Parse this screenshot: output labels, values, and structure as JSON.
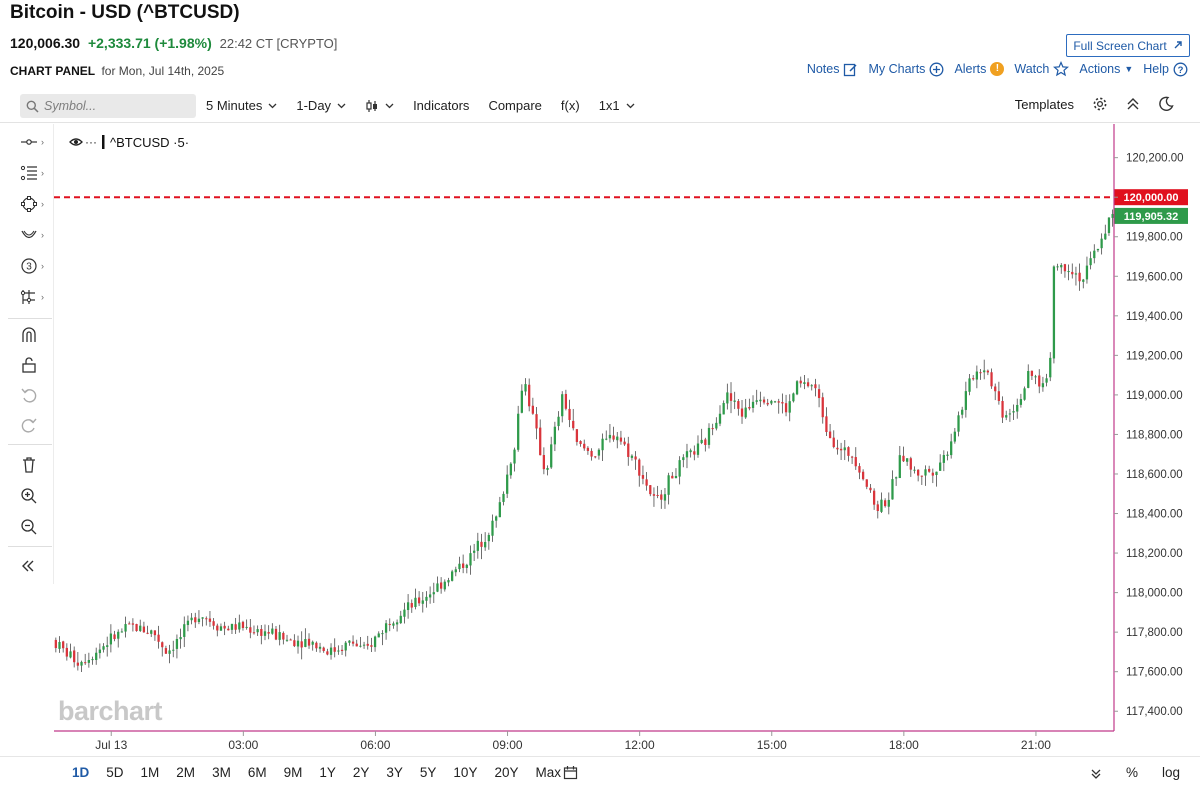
{
  "header": {
    "title": "Bitcoin - USD (^BTCUSD)",
    "last": "120,006.30",
    "change": "+2,333.71 (+1.98%)",
    "time": "22:42 CT [CRYPTO]",
    "panel_label": "CHART PANEL",
    "panel_date": "for Mon, Jul 14th, 2025",
    "fullscreen": "Full Screen Chart",
    "links": {
      "notes": "Notes",
      "my_charts": "My Charts",
      "alerts": "Alerts",
      "watch": "Watch",
      "actions": "Actions",
      "help": "Help"
    },
    "alert_badge": "!"
  },
  "toolbar": {
    "search_placeholder": "Symbol...",
    "interval": "5 Minutes",
    "range": "1-Day",
    "indicators": "Indicators",
    "compare": "Compare",
    "fx": "f(x)",
    "layout": "1x1",
    "templates": "Templates"
  },
  "bottom": {
    "ranges": [
      "1D",
      "5D",
      "1M",
      "2M",
      "3M",
      "6M",
      "9M",
      "1Y",
      "2Y",
      "3Y",
      "5Y",
      "10Y",
      "20Y",
      "Max"
    ],
    "active": "1D",
    "percent": "%",
    "log": "log"
  },
  "watermark": "barchart",
  "colors": {
    "up": "#2e9a4a",
    "down": "#d9343b",
    "alert_line": "#e0101e",
    "accent": "#1f5aa6",
    "axis_line": "#c0398a"
  },
  "icons": [
    "search-icon",
    "notes-icon",
    "plus-circle-icon",
    "alert-icon",
    "star-icon",
    "help-icon",
    "external-link-icon",
    "candle-type-icon",
    "gear-icon",
    "collapse-icon",
    "moon-icon",
    "eye-icon",
    "calendar-icon",
    "magnet-icon",
    "lock-icon",
    "undo-icon",
    "redo-icon",
    "trash-icon",
    "zoom-in-icon",
    "zoom-out-icon",
    "double-chevron-left-icon"
  ],
  "chart_data": {
    "type": "candlestick",
    "symbol_label": "^BTCUSD ·5·",
    "interval": "5 Minutes",
    "ylim": [
      117300,
      120350
    ],
    "y_ticks": [
      117400,
      117600,
      117800,
      118000,
      118200,
      118400,
      118600,
      118800,
      119000,
      119200,
      119400,
      119600,
      119800,
      120000,
      120200
    ],
    "y_tick_labels": [
      "117,400.00",
      "117,600.00",
      "117,800.00",
      "118,000.00",
      "118,200.00",
      "118,400.00",
      "118,600.00",
      "118,800.00",
      "119,000.00",
      "119,200.00",
      "119,400.00",
      "119,600.00",
      "119,800.00",
      "",
      "120,200.00"
    ],
    "x_ticks": [
      "Jul 13",
      "03:00",
      "06:00",
      "09:00",
      "12:00",
      "15:00",
      "18:00",
      "21:00"
    ],
    "x_tick_hours": [
      0,
      3,
      6,
      9,
      12,
      15,
      18,
      21
    ],
    "x_range_hours": [
      -1.3,
      22.75
    ],
    "alert_line": {
      "value": 120000,
      "label": "120,000.00"
    },
    "last_price": {
      "value": 119905.32,
      "label": "119,905.32"
    },
    "waypoints": [
      [
        -1.3,
        117760
      ],
      [
        -1.0,
        117700
      ],
      [
        -0.7,
        117650
      ],
      [
        -0.3,
        117700
      ],
      [
        0.0,
        117760
      ],
      [
        0.5,
        117830
      ],
      [
        1.0,
        117800
      ],
      [
        1.3,
        117700
      ],
      [
        1.6,
        117770
      ],
      [
        2.0,
        117900
      ],
      [
        2.3,
        117860
      ],
      [
        2.6,
        117820
      ],
      [
        3.0,
        117830
      ],
      [
        3.3,
        117810
      ],
      [
        3.6,
        117800
      ],
      [
        4.0,
        117760
      ],
      [
        4.5,
        117760
      ],
      [
        5.0,
        117700
      ],
      [
        5.5,
        117750
      ],
      [
        5.8,
        117700
      ],
      [
        6.0,
        117760
      ],
      [
        6.4,
        117870
      ],
      [
        7.0,
        117950
      ],
      [
        7.6,
        118060
      ],
      [
        8.2,
        118180
      ],
      [
        8.8,
        118380
      ],
      [
        9.2,
        118750
      ],
      [
        9.4,
        119100
      ],
      [
        9.7,
        118800
      ],
      [
        9.9,
        118600
      ],
      [
        10.3,
        119000
      ],
      [
        10.6,
        118750
      ],
      [
        11.0,
        118700
      ],
      [
        11.5,
        118810
      ],
      [
        12.0,
        118640
      ],
      [
        12.4,
        118450
      ],
      [
        12.8,
        118600
      ],
      [
        13.2,
        118700
      ],
      [
        13.5,
        118750
      ],
      [
        14.0,
        119000
      ],
      [
        14.4,
        118900
      ],
      [
        14.7,
        119000
      ],
      [
        15.1,
        118980
      ],
      [
        15.4,
        118920
      ],
      [
        15.6,
        119050
      ],
      [
        16.0,
        119050
      ],
      [
        16.3,
        118830
      ],
      [
        16.6,
        118710
      ],
      [
        16.9,
        118700
      ],
      [
        17.1,
        118600
      ],
      [
        17.4,
        118430
      ],
      [
        17.7,
        118480
      ],
      [
        18.0,
        118700
      ],
      [
        18.3,
        118600
      ],
      [
        18.7,
        118620
      ],
      [
        19.0,
        118700
      ],
      [
        19.3,
        118900
      ],
      [
        19.6,
        119100
      ],
      [
        19.9,
        119150
      ],
      [
        20.3,
        118900
      ],
      [
        20.6,
        118950
      ],
      [
        20.9,
        119100
      ],
      [
        21.2,
        119050
      ],
      [
        21.35,
        119120
      ],
      [
        21.45,
        119650
      ],
      [
        21.8,
        119650
      ],
      [
        22.1,
        119580
      ],
      [
        22.5,
        119780
      ],
      [
        22.75,
        119905
      ]
    ]
  }
}
